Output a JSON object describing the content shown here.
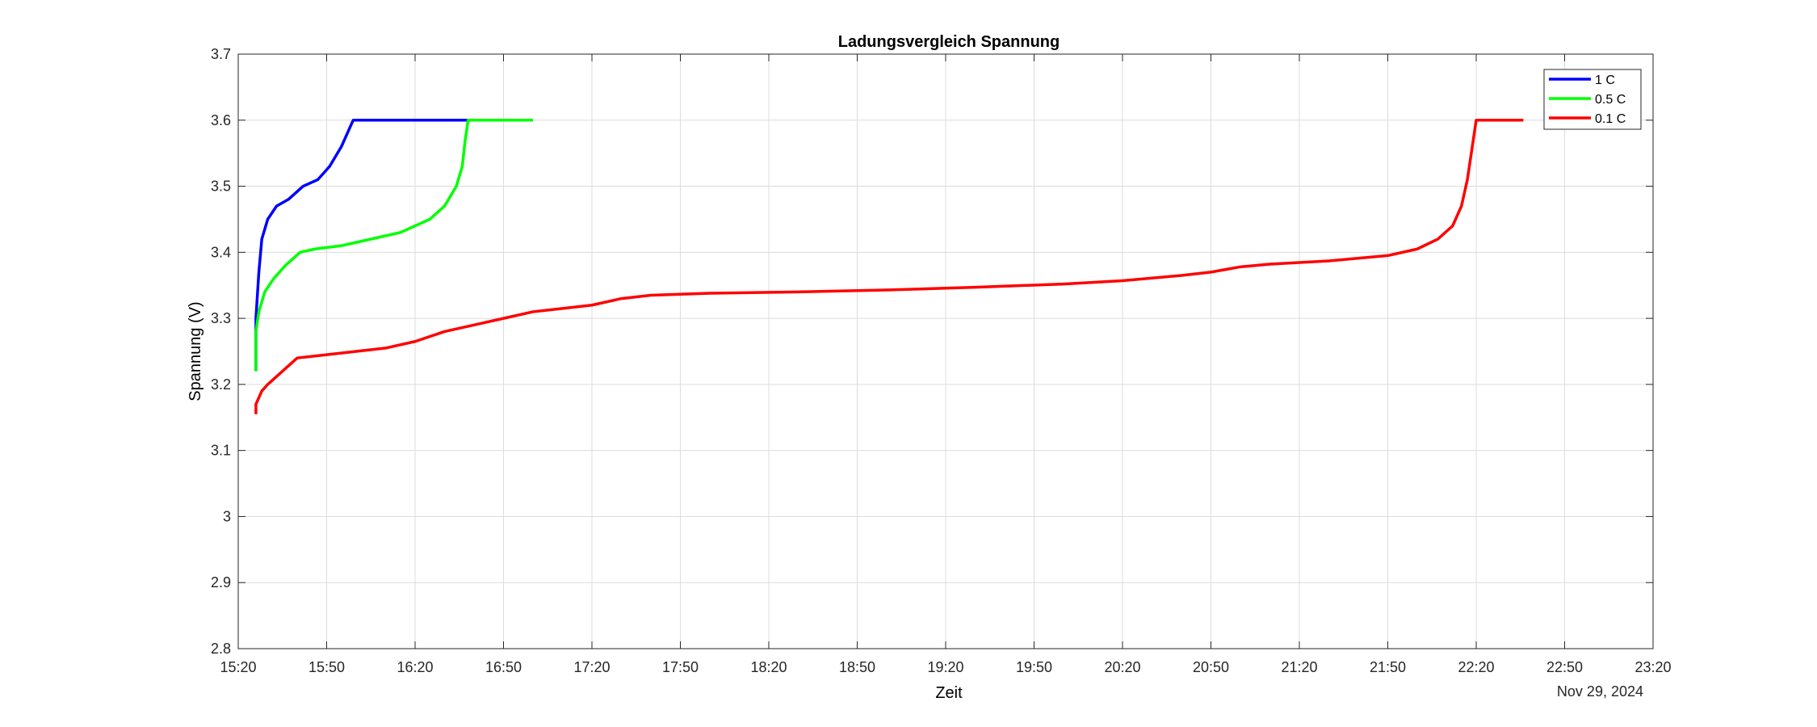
{
  "chart_data": {
    "type": "line",
    "title": "Ladungsvergleich Spannung",
    "xlabel": "Zeit",
    "ylabel": "Spannung (V)",
    "date_label": "Nov 29, 2024",
    "x_unit": "HH:MM",
    "xlim": [
      "15:20",
      "23:20"
    ],
    "ylim": [
      2.8,
      3.7
    ],
    "x_ticks": [
      "15:20",
      "15:50",
      "16:20",
      "16:50",
      "17:20",
      "17:50",
      "18:20",
      "18:50",
      "19:20",
      "19:50",
      "20:20",
      "20:50",
      "21:20",
      "21:50",
      "22:20",
      "22:50",
      "23:20"
    ],
    "y_ticks": [
      2.8,
      2.9,
      3,
      3.1,
      3.2,
      3.3,
      3.4,
      3.5,
      3.6,
      3.7
    ],
    "y_tick_labels": [
      "2.8",
      "2.9",
      "3",
      "3.1",
      "3.2",
      "3.3",
      "3.4",
      "3.5",
      "3.6",
      "3.7"
    ],
    "grid": true,
    "legend": "top-right",
    "series": [
      {
        "name": "1 C",
        "color": "#0000ff",
        "x": [
          "15:26",
          "15:26",
          "15:27",
          "15:28",
          "15:30",
          "15:33",
          "15:37",
          "15:42",
          "15:47",
          "15:51",
          "15:55",
          "15:58",
          "15:59",
          "16:00",
          "16:38"
        ],
        "y": [
          3.22,
          3.3,
          3.37,
          3.42,
          3.45,
          3.47,
          3.48,
          3.5,
          3.51,
          3.53,
          3.56,
          3.59,
          3.6,
          3.6,
          3.6
        ]
      },
      {
        "name": "0.5 C",
        "color": "#00ff00",
        "x": [
          "15:26",
          "15:26",
          "15:27",
          "15:29",
          "15:32",
          "15:36",
          "15:41",
          "15:46",
          "15:55",
          "16:05",
          "16:15",
          "16:25",
          "16:30",
          "16:34",
          "16:36",
          "16:37",
          "16:38",
          "17:00"
        ],
        "y": [
          3.22,
          3.28,
          3.31,
          3.34,
          3.36,
          3.38,
          3.4,
          3.405,
          3.41,
          3.42,
          3.43,
          3.45,
          3.47,
          3.5,
          3.53,
          3.57,
          3.6,
          3.6
        ]
      },
      {
        "name": "0.1 C",
        "color": "#ff0000",
        "x": [
          "15:26",
          "15:26",
          "15:28",
          "15:30",
          "15:35",
          "15:40",
          "15:50",
          "16:00",
          "16:10",
          "16:20",
          "16:30",
          "16:40",
          "16:50",
          "17:00",
          "17:10",
          "17:20",
          "17:30",
          "17:40",
          "18:00",
          "18:30",
          "19:00",
          "19:30",
          "20:00",
          "20:20",
          "20:40",
          "20:50",
          "21:00",
          "21:10",
          "21:30",
          "21:50",
          "22:00",
          "22:07",
          "22:12",
          "22:15",
          "22:17",
          "22:19",
          "22:20",
          "22:21",
          "22:36"
        ],
        "y": [
          3.155,
          3.17,
          3.19,
          3.2,
          3.22,
          3.24,
          3.245,
          3.25,
          3.255,
          3.265,
          3.28,
          3.29,
          3.3,
          3.31,
          3.315,
          3.32,
          3.33,
          3.335,
          3.338,
          3.34,
          3.343,
          3.347,
          3.352,
          3.357,
          3.365,
          3.37,
          3.378,
          3.382,
          3.387,
          3.395,
          3.405,
          3.42,
          3.44,
          3.47,
          3.51,
          3.57,
          3.6,
          3.6,
          3.6
        ]
      }
    ]
  }
}
